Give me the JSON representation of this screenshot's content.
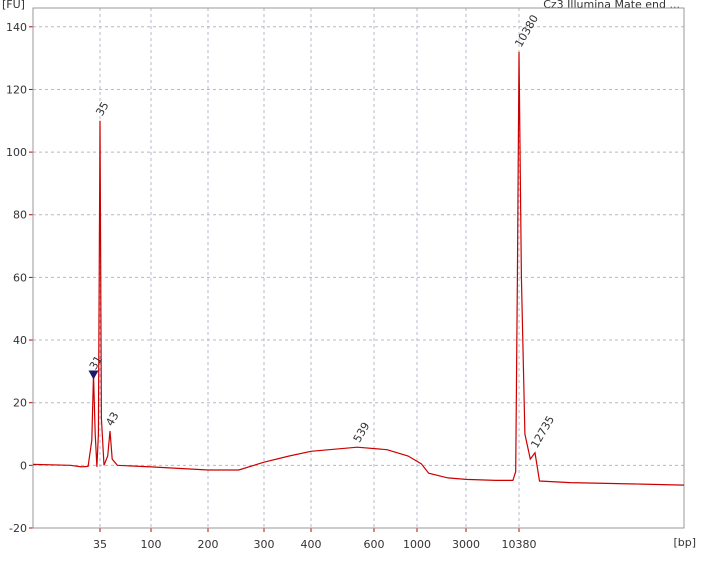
{
  "chart_data": {
    "type": "line",
    "title": "Cz3 Illumina Mate end ...",
    "y_label": "[FU]",
    "x_label": "[bp]",
    "x": [
      10,
      20,
      25,
      28,
      30,
      31,
      32,
      33,
      34,
      35,
      36,
      38,
      41,
      43,
      45,
      50,
      100,
      200,
      250,
      300,
      350,
      400,
      539,
      700,
      900,
      1100,
      1300,
      2000,
      3000,
      6000,
      9000,
      9600,
      10000,
      10380,
      10700,
      11200,
      12000,
      12735,
      13500,
      20000,
      50000,
      86000
    ],
    "series": [
      {
        "name": "Cz3 Illumina Mate end",
        "color": "#cc0000",
        "values": [
          0.3,
          0,
          -0.5,
          -0.3,
          8,
          29,
          10,
          -0.5,
          10,
          110,
          15,
          0,
          3,
          11,
          2,
          0,
          -0.5,
          -1.5,
          -1.5,
          1,
          3,
          4.5,
          5.8,
          5,
          3,
          0.5,
          -2.5,
          -4,
          -4.5,
          -4.8,
          -4.8,
          -2,
          60,
          132,
          60,
          10,
          2,
          4,
          -5,
          -5.5,
          -6,
          -6.3
        ]
      }
    ],
    "peaks": [
      {
        "x": 31,
        "fu": 29,
        "color": "#000000"
      },
      {
        "x": 35,
        "fu": 110,
        "color": "#008000"
      },
      {
        "x": 43,
        "fu": 11,
        "color": "#000000"
      },
      {
        "x": 539,
        "fu": 5.8,
        "color": "#000000"
      },
      {
        "x": 10380,
        "fu": 132,
        "color": "#8030c0"
      },
      {
        "x": 12735,
        "fu": 4,
        "color": "#000000"
      }
    ],
    "xlim": [
      10,
      86000
    ],
    "xticks": [
      35,
      100,
      200,
      300,
      400,
      600,
      1000,
      3000,
      10380
    ],
    "ylim": [
      -20,
      146
    ],
    "yticks": [
      -20,
      0,
      20,
      40,
      60,
      80,
      100,
      120,
      140
    ],
    "grid": true
  }
}
